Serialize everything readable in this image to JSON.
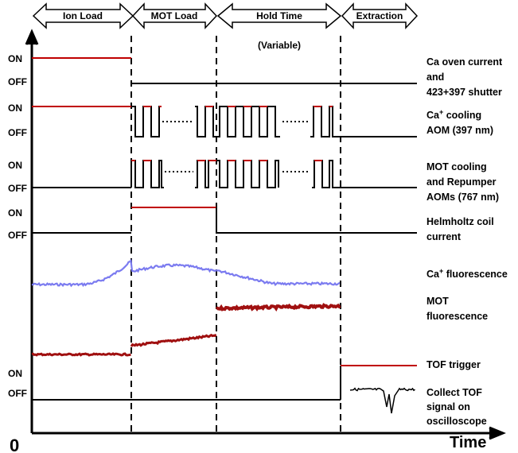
{
  "phases": [
    {
      "label": "Ion Load"
    },
    {
      "label": "MOT Load"
    },
    {
      "label": "Hold Time",
      "sub": "(Variable)"
    },
    {
      "label": "Extraction"
    }
  ],
  "state_labels": {
    "on": "ON",
    "off": "OFF"
  },
  "signals": [
    {
      "lines": [
        "Ca oven current",
        "and",
        "423+397 shutter"
      ]
    },
    {
      "lines": [
        "Ca+ cooling",
        "AOM (397 nm)"
      ]
    },
    {
      "lines": [
        "MOT cooling",
        "and Repumper",
        "AOMs (767 nm)"
      ]
    },
    {
      "lines": [
        "Helmholtz coil",
        "current"
      ]
    },
    {
      "lines": [
        "Ca+ fluorescence"
      ]
    },
    {
      "lines": [
        "MOT",
        "fluorescence"
      ]
    },
    {
      "lines": [
        "TOF trigger"
      ]
    },
    {
      "lines": [
        "Collect TOF",
        "signal on",
        "oscilloscope"
      ]
    }
  ],
  "axis": {
    "x_label": "Time",
    "origin": "0"
  },
  "colors": {
    "red": "#c00000",
    "black": "#000000",
    "blue": "#7b7bf0",
    "darkred": "#a01010"
  }
}
